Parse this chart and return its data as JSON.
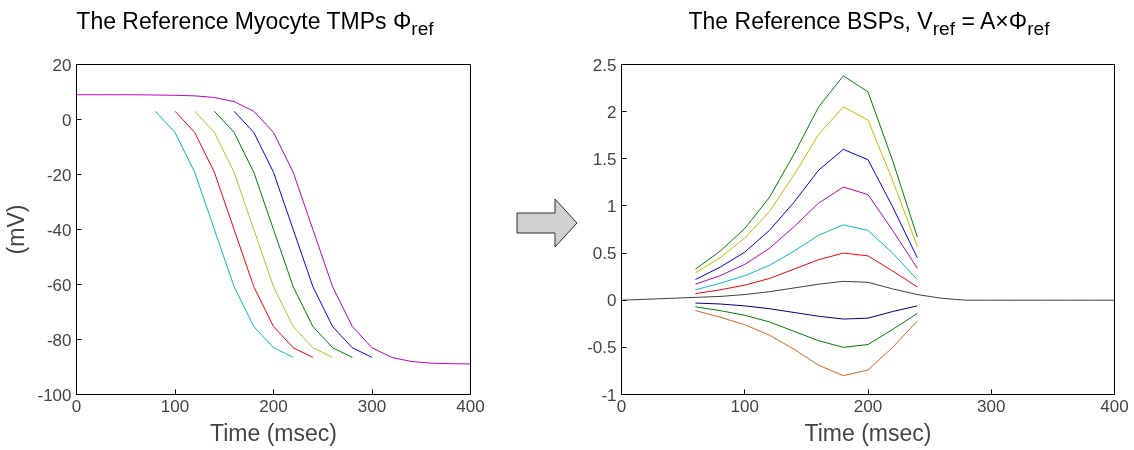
{
  "chart_data": [
    {
      "type": "line",
      "title": "The Reference Myocyte TMPs Φ$_{ref}$",
      "xlabel": "Time (msec)",
      "ylabel": "(mV)",
      "xlim": [
        0,
        400
      ],
      "ylim": [
        -100,
        20
      ],
      "xticks": [
        0,
        100,
        200,
        300,
        400
      ],
      "yticks": [
        -100,
        -80,
        -60,
        -40,
        -20,
        0,
        20
      ],
      "grid": false,
      "x": [
        0,
        20,
        40,
        60,
        80,
        100,
        120,
        140,
        160,
        180,
        200,
        220,
        240,
        260,
        280,
        300,
        320,
        340,
        360,
        380,
        400
      ],
      "series": [
        {
          "color": "#00bfbf",
          "values": [
            null,
            null,
            null,
            null,
            3.0,
            -4.7,
            -19.2,
            -40,
            -60.8,
            -75.3,
            -83.0,
            -86.5,
            null,
            null,
            null,
            null,
            null,
            null,
            null,
            null,
            null
          ]
        },
        {
          "color": "#ff0000",
          "values": [
            null,
            null,
            null,
            null,
            null,
            3.0,
            -4.7,
            -19.2,
            -40,
            -60.8,
            -75.3,
            -83.0,
            -86.5,
            null,
            null,
            null,
            null,
            null,
            null,
            null,
            null
          ]
        },
        {
          "color": "#9acd32",
          "values": [
            null,
            null,
            null,
            null,
            null,
            null,
            3.0,
            -4.7,
            -19.2,
            -40,
            -60.8,
            -75.3,
            -83.0,
            -86.5,
            null,
            null,
            null,
            null,
            null,
            null,
            null
          ]
        },
        {
          "color": "#008000",
          "values": [
            null,
            null,
            null,
            null,
            null,
            null,
            null,
            3.0,
            -4.7,
            -19.2,
            -40,
            -60.8,
            -75.3,
            -83.0,
            -86.5,
            null,
            null,
            null,
            null,
            null,
            null
          ]
        },
        {
          "color": "#0000ff",
          "values": [
            null,
            null,
            null,
            null,
            null,
            null,
            null,
            null,
            3.0,
            -4.7,
            -19.2,
            -40,
            -60.8,
            -75.3,
            -83.0,
            -86.5,
            null,
            null,
            null,
            null,
            null
          ]
        },
        {
          "color": "#bf00bf",
          "values": [
            9.0,
            9.0,
            9.0,
            9.0,
            8.9,
            8.8,
            8.6,
            8.0,
            6.5,
            3.0,
            -4.7,
            -19.2,
            -40,
            -60.8,
            -75.3,
            -83.0,
            -86.5,
            -88.0,
            -88.6,
            -88.8,
            -88.9
          ]
        }
      ]
    },
    {
      "type": "line",
      "title": "The Reference BSPs, V$_{ref}$ = A×Φ$_{ref}$",
      "xlabel": "Time (msec)",
      "xlim": [
        0,
        400
      ],
      "ylim": [
        -1,
        2.5
      ],
      "xticks": [
        0,
        100,
        200,
        300,
        400
      ],
      "yticks": [
        -1,
        -0.5,
        0,
        0.5,
        1,
        1.5,
        2,
        2.5
      ],
      "grid": false,
      "x": [
        0,
        20,
        40,
        60,
        80,
        100,
        120,
        140,
        160,
        180,
        200,
        220,
        240,
        260,
        280,
        300,
        320,
        340,
        360,
        380,
        400
      ],
      "series": [
        {
          "color": "#008000",
          "values": [
            null,
            null,
            null,
            0.33,
            0.52,
            0.76,
            1.09,
            1.55,
            2.05,
            2.38,
            2.21,
            1.48,
            0.67,
            null,
            null,
            null,
            null,
            null,
            null,
            null,
            null
          ]
        },
        {
          "color": "#bfbf00",
          "values": [
            null,
            null,
            null,
            0.29,
            0.45,
            0.66,
            0.94,
            1.33,
            1.76,
            2.05,
            1.91,
            1.27,
            0.57,
            null,
            null,
            null,
            null,
            null,
            null,
            null,
            null
          ]
        },
        {
          "color": "#0000ff",
          "values": [
            null,
            null,
            null,
            0.22,
            0.35,
            0.51,
            0.74,
            1.04,
            1.38,
            1.6,
            1.49,
            0.99,
            0.45,
            null,
            null,
            null,
            null,
            null,
            null,
            null,
            null
          ]
        },
        {
          "color": "#bf00bf",
          "values": [
            null,
            null,
            null,
            0.17,
            0.26,
            0.38,
            0.55,
            0.78,
            1.03,
            1.2,
            1.12,
            0.74,
            0.34,
            null,
            null,
            null,
            null,
            null,
            null,
            null,
            null
          ]
        },
        {
          "color": "#00bfbf",
          "values": [
            null,
            null,
            null,
            0.11,
            0.18,
            0.26,
            0.37,
            0.52,
            0.69,
            0.8,
            0.74,
            0.5,
            0.22,
            null,
            null,
            null,
            null,
            null,
            null,
            null,
            null
          ]
        },
        {
          "color": "#ff0000",
          "values": [
            null,
            null,
            null,
            0.07,
            0.11,
            0.16,
            0.23,
            0.33,
            0.43,
            0.5,
            0.47,
            0.31,
            0.14,
            null,
            null,
            null,
            null,
            null,
            null,
            null,
            null
          ]
        },
        {
          "color": "#000080",
          "values": [
            null,
            null,
            null,
            -0.03,
            -0.04,
            -0.06,
            -0.09,
            -0.13,
            -0.17,
            -0.2,
            -0.19,
            -0.12,
            -0.06,
            null,
            null,
            null,
            null,
            null,
            null,
            null,
            null
          ]
        },
        {
          "color": "#008000",
          "values": [
            null,
            null,
            null,
            -0.07,
            -0.11,
            -0.16,
            -0.23,
            -0.33,
            -0.43,
            -0.5,
            -0.47,
            -0.31,
            -0.14,
            null,
            null,
            null,
            null,
            null,
            null,
            null,
            null
          ]
        },
        {
          "color": "#d2691e",
          "values": [
            null,
            null,
            null,
            -0.11,
            -0.18,
            -0.26,
            -0.37,
            -0.52,
            -0.69,
            -0.8,
            -0.74,
            -0.5,
            -0.22,
            null,
            null,
            null,
            null,
            null,
            null,
            null,
            null
          ]
        },
        {
          "color": "#404040",
          "values": [
            0,
            0.01,
            0.02,
            0.03,
            0.04,
            0.06,
            0.09,
            0.13,
            0.17,
            0.2,
            0.19,
            0.12,
            0.06,
            0.02,
            0,
            0,
            0,
            0,
            0,
            0,
            0
          ]
        }
      ]
    }
  ]
}
